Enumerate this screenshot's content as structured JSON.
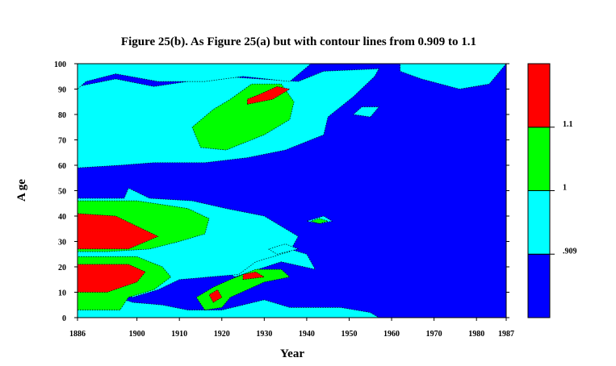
{
  "chart_data": {
    "type": "heatmap",
    "title": "Figure 25(b). As Figure 25(a) but with contour lines from 0.909 to 1.1",
    "xlabel": "Year",
    "ylabel": "A ge",
    "xlim": [
      1886,
      1987
    ],
    "ylim": [
      0,
      100
    ],
    "x_ticks": [
      "1886",
      "1900",
      "1910",
      "1920",
      "1930",
      "1940",
      "1950",
      "1960",
      "1970",
      "1980",
      "1987"
    ],
    "x_tick_values": [
      1886,
      1900,
      1910,
      1920,
      1930,
      1940,
      1950,
      1960,
      1970,
      1980,
      1987
    ],
    "y_ticks": [
      "0",
      "10",
      "20",
      "30",
      "40",
      "50",
      "60",
      "70",
      "80",
      "90",
      "100"
    ],
    "y_tick_values": [
      0,
      10,
      20,
      30,
      40,
      50,
      60,
      70,
      80,
      90,
      100
    ],
    "levels": [
      {
        "label": "",
        "color": "#0000FF",
        "range": "below 0.909"
      },
      {
        "label": ".909",
        "color": "#00FFFF",
        "range": "0.909 to 1"
      },
      {
        "label": "1",
        "color": "#00FF00",
        "range": "1 to 1.1"
      },
      {
        "label": "1.1",
        "color": "#FF0000",
        "range": "above 1.1"
      }
    ],
    "regions": [
      {
        "level": ".909",
        "points": [
          [
            1886,
            0
          ],
          [
            1957,
            0
          ],
          [
            1955,
            2
          ],
          [
            1948,
            4
          ],
          [
            1936,
            4
          ],
          [
            1930,
            7
          ],
          [
            1920,
            3
          ],
          [
            1912,
            3
          ],
          [
            1906,
            5
          ],
          [
            1899,
            6
          ],
          [
            1892,
            10
          ],
          [
            1886,
            10
          ]
        ]
      },
      {
        "level": ".909",
        "points": [
          [
            1923,
            16
          ],
          [
            1934,
            22
          ],
          [
            1942,
            19
          ],
          [
            1940,
            25
          ],
          [
            1934,
            28
          ],
          [
            1929,
            28
          ],
          [
            1926,
            23
          ],
          [
            1921,
            19
          ]
        ]
      },
      {
        "level": ".909",
        "points": [
          [
            1886,
            47
          ],
          [
            1897,
            47
          ],
          [
            1898,
            51
          ],
          [
            1903,
            47
          ],
          [
            1913,
            46
          ],
          [
            1921,
            43
          ],
          [
            1930,
            40
          ],
          [
            1938,
            32
          ],
          [
            1936,
            26
          ],
          [
            1928,
            22
          ],
          [
            1924,
            17
          ],
          [
            1910,
            15
          ],
          [
            1905,
            11
          ],
          [
            1899,
            8
          ],
          [
            1893,
            11
          ],
          [
            1886,
            11
          ]
        ]
      },
      {
        "level": ".909",
        "points": [
          [
            1886,
            59
          ],
          [
            1896,
            60
          ],
          [
            1904,
            61
          ],
          [
            1916,
            61
          ],
          [
            1926,
            63
          ],
          [
            1935,
            66
          ],
          [
            1944,
            72
          ],
          [
            1945,
            79
          ],
          [
            1951,
            87
          ],
          [
            1956,
            95
          ],
          [
            1957,
            98
          ],
          [
            1944,
            97
          ],
          [
            1938,
            93
          ],
          [
            1920,
            95
          ],
          [
            1904,
            91
          ],
          [
            1895,
            94
          ],
          [
            1886,
            91
          ]
        ]
      },
      {
        "level": ".909",
        "points": [
          [
            1886,
            100
          ],
          [
            1941,
            100
          ],
          [
            1936,
            93
          ],
          [
            1925,
            95
          ],
          [
            1916,
            93
          ],
          [
            1905,
            93
          ],
          [
            1895,
            96
          ],
          [
            1888,
            93
          ],
          [
            1886,
            90
          ]
        ]
      },
      {
        "level": ".909",
        "points": [
          [
            1962,
            100
          ],
          [
            1987,
            100
          ],
          [
            1983,
            92
          ],
          [
            1976,
            90
          ],
          [
            1967,
            94
          ],
          [
            1962,
            97
          ]
        ]
      },
      {
        "level": ".909",
        "points": [
          [
            1955,
            79
          ],
          [
            1957,
            83
          ],
          [
            1953,
            83
          ],
          [
            1951,
            80
          ]
        ]
      },
      {
        "level": ".909",
        "points": [
          [
            1943,
            37
          ],
          [
            1946,
            38
          ],
          [
            1944,
            40
          ],
          [
            1940,
            38
          ]
        ]
      },
      {
        "level": ".909",
        "points": [
          [
            1933,
            25
          ],
          [
            1938,
            27
          ],
          [
            1935,
            29
          ],
          [
            1931,
            27
          ]
        ]
      },
      {
        "level": "1",
        "points": [
          [
            1886,
            3
          ],
          [
            1896,
            3
          ],
          [
            1898,
            8
          ],
          [
            1904,
            11
          ],
          [
            1908,
            16
          ],
          [
            1906,
            20
          ],
          [
            1900,
            24
          ],
          [
            1886,
            24
          ]
        ]
      },
      {
        "level": "1",
        "points": [
          [
            1886,
            26
          ],
          [
            1893,
            26
          ],
          [
            1903,
            27
          ],
          [
            1910,
            30
          ],
          [
            1916,
            33
          ],
          [
            1917,
            39
          ],
          [
            1912,
            43
          ],
          [
            1900,
            46
          ],
          [
            1886,
            46
          ]
        ]
      },
      {
        "level": "1",
        "points": [
          [
            1916,
            3
          ],
          [
            1920,
            4
          ],
          [
            1922,
            8
          ],
          [
            1926,
            11
          ],
          [
            1930,
            14
          ],
          [
            1936,
            16
          ],
          [
            1934,
            19
          ],
          [
            1928,
            19
          ],
          [
            1922,
            15
          ],
          [
            1918,
            12
          ],
          [
            1914,
            8
          ]
        ]
      },
      {
        "level": "1",
        "points": [
          [
            1915,
            67
          ],
          [
            1921,
            66
          ],
          [
            1930,
            72
          ],
          [
            1936,
            78
          ],
          [
            1937,
            85
          ],
          [
            1934,
            92
          ],
          [
            1927,
            92
          ],
          [
            1922,
            86
          ],
          [
            1918,
            82
          ],
          [
            1913,
            75
          ]
        ]
      },
      {
        "level": "1",
        "points": [
          [
            1943,
            37
          ],
          [
            1945,
            38
          ],
          [
            1943,
            39
          ],
          [
            1941,
            38
          ]
        ]
      },
      {
        "level": "1.1",
        "points": [
          [
            1886,
            10
          ],
          [
            1893,
            10
          ],
          [
            1900,
            14
          ],
          [
            1902,
            18
          ],
          [
            1898,
            21
          ],
          [
            1886,
            21
          ]
        ]
      },
      {
        "level": "1.1",
        "points": [
          [
            1886,
            27
          ],
          [
            1898,
            27
          ],
          [
            1905,
            32
          ],
          [
            1900,
            36
          ],
          [
            1895,
            40
          ],
          [
            1886,
            41
          ]
        ]
      },
      {
        "level": "1.1",
        "points": [
          [
            1918,
            6
          ],
          [
            1920,
            8
          ],
          [
            1919,
            11
          ],
          [
            1917,
            9
          ]
        ]
      },
      {
        "level": "1.1",
        "points": [
          [
            1925,
            15
          ],
          [
            1930,
            16
          ],
          [
            1928,
            18
          ],
          [
            1925,
            17
          ]
        ]
      },
      {
        "level": "1.1",
        "points": [
          [
            1926,
            84
          ],
          [
            1932,
            86
          ],
          [
            1936,
            90
          ],
          [
            1933,
            91
          ],
          [
            1929,
            88
          ],
          [
            1926,
            86
          ]
        ]
      }
    ]
  }
}
